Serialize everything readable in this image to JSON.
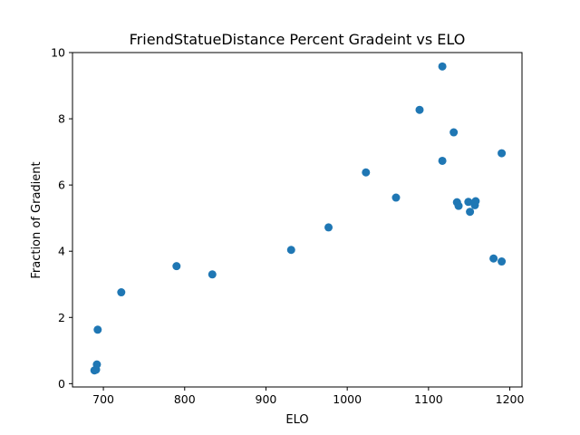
{
  "chart_data": {
    "type": "scatter",
    "title": "FriendStatueDistance Percent Gradeint vs ELO",
    "xlabel": "ELO",
    "ylabel": "Fraction of Gradient",
    "xlim": [
      662,
      1215
    ],
    "ylim": [
      -0.1,
      10
    ],
    "xticks": [
      700,
      800,
      900,
      1000,
      1100,
      1200
    ],
    "yticks": [
      0,
      2,
      4,
      6,
      8,
      10
    ],
    "grid": false,
    "marker_color": "#1f77b4",
    "points": [
      {
        "x": 689,
        "y": 0.4
      },
      {
        "x": 691,
        "y": 0.42
      },
      {
        "x": 692,
        "y": 0.58
      },
      {
        "x": 693,
        "y": 1.63
      },
      {
        "x": 722,
        "y": 2.76
      },
      {
        "x": 790,
        "y": 3.55
      },
      {
        "x": 834,
        "y": 3.3
      },
      {
        "x": 931,
        "y": 4.04
      },
      {
        "x": 977,
        "y": 4.72
      },
      {
        "x": 1023,
        "y": 6.38
      },
      {
        "x": 1060,
        "y": 5.62
      },
      {
        "x": 1089,
        "y": 8.27
      },
      {
        "x": 1117,
        "y": 9.58
      },
      {
        "x": 1117,
        "y": 6.73
      },
      {
        "x": 1131,
        "y": 7.59
      },
      {
        "x": 1135,
        "y": 5.48
      },
      {
        "x": 1137,
        "y": 5.37
      },
      {
        "x": 1149,
        "y": 5.49
      },
      {
        "x": 1151,
        "y": 5.19
      },
      {
        "x": 1157,
        "y": 5.39
      },
      {
        "x": 1158,
        "y": 5.51
      },
      {
        "x": 1180,
        "y": 3.78
      },
      {
        "x": 1190,
        "y": 6.96
      },
      {
        "x": 1190,
        "y": 3.69
      }
    ]
  }
}
